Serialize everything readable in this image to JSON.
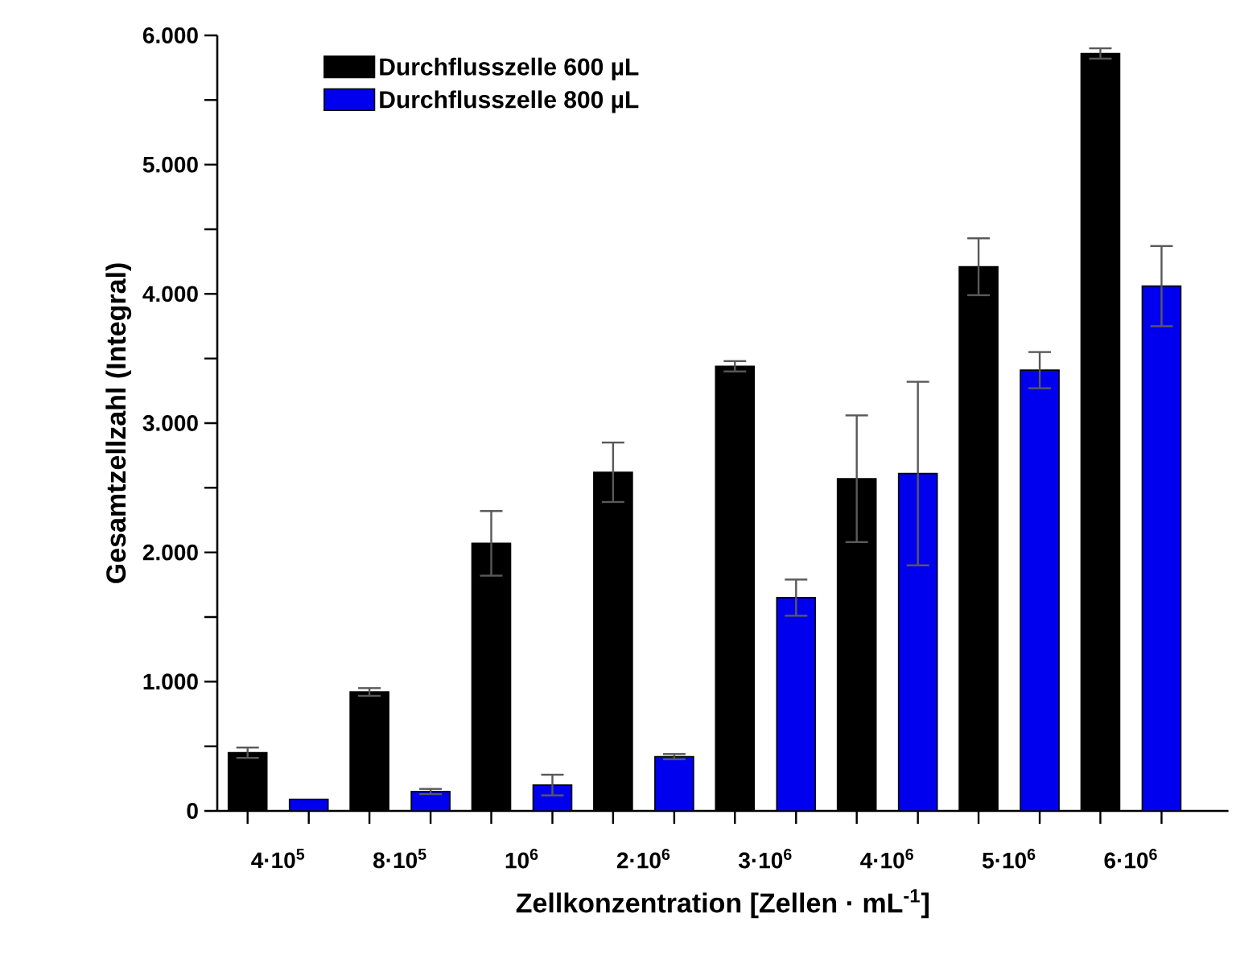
{
  "chart_data": {
    "type": "bar",
    "xlabel": "Zellkonzentration [Zellen · mL$^{-1}$]",
    "ylabel": "Gesamtzellzahl (Integral)",
    "categories": [
      "4·10$^{5}$",
      "8·10$^{5}$",
      "10$^{6}$",
      "2·10$^{6}$",
      "3·10$^{6}$",
      "4·10$^{6}$",
      "5·10$^{6}$",
      "6·10$^{6}$"
    ],
    "series": [
      {
        "name": "Durchflusszelle 600 µL",
        "color": "#000000",
        "values": [
          450,
          920,
          2070,
          2620,
          3440,
          2570,
          4210,
          5860
        ],
        "errors": [
          40,
          30,
          250,
          230,
          40,
          490,
          220,
          40
        ]
      },
      {
        "name": "Durchflusszelle 800 µL",
        "color": "#0000ee",
        "values": [
          90,
          150,
          200,
          420,
          1650,
          2610,
          3410,
          4060
        ],
        "errors": [
          null,
          20,
          80,
          20,
          140,
          710,
          140,
          310
        ]
      }
    ],
    "ylim": [
      0,
      6000
    ],
    "yticks": [
      0,
      {
        "value": 1000,
        "label": "1.000"
      },
      {
        "value": 2000,
        "label": "2.000"
      },
      {
        "value": 3000,
        "label": "3.000"
      },
      {
        "value": 4000,
        "label": "4.000"
      },
      {
        "value": 5000,
        "label": "5.000"
      },
      {
        "value": 6000,
        "label": "6.000"
      }
    ],
    "grid": false,
    "legend": "top left"
  }
}
